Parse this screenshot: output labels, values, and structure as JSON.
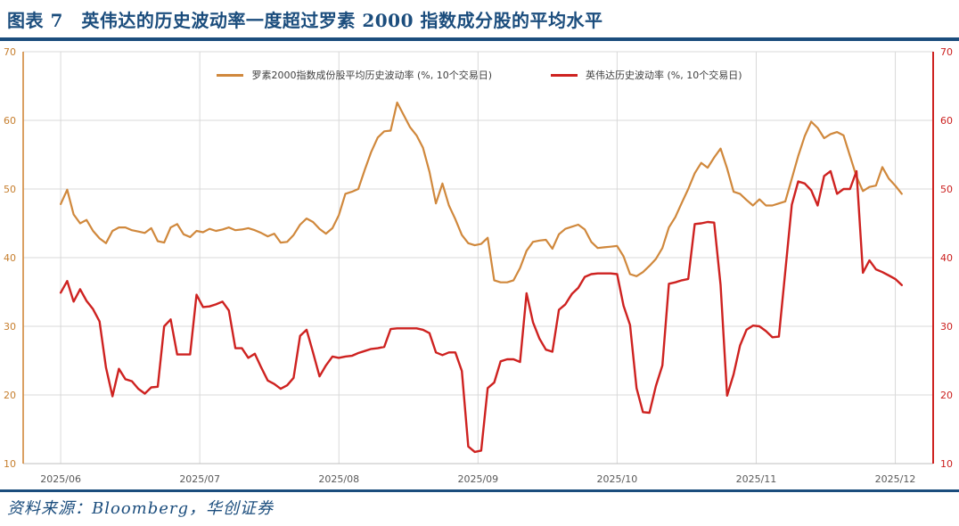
{
  "header": {
    "title": "图表 7　英伟达的历史波动率一度超过罗素 2000 指数成分股的平均水平"
  },
  "footer": {
    "source": "资料来源：Bloomberg，华创证券"
  },
  "colors": {
    "brand_blue": "#1b4d7d",
    "russell_orange": "#D0883C",
    "nvda_red": "#CE2220",
    "left_axis_label": "#C67E2D",
    "right_axis_label": "#CB1F1E",
    "gridline": "#D9D9D9",
    "bottom_axis": "#BFBFBF"
  },
  "chart_data": {
    "type": "line",
    "title": "",
    "xlabel": "",
    "ylabel": "",
    "ylim": [
      10,
      70
    ],
    "y_ticks": [
      70,
      60,
      50,
      40,
      30,
      20,
      10
    ],
    "grid": true,
    "legend_position": "top-center",
    "x_domain": [
      -5.8,
      134.85
    ],
    "months": [
      {
        "label": "2025/06",
        "i": 0
      },
      {
        "label": "2025/07",
        "i": 21.5
      },
      {
        "label": "2025/08",
        "i": 43
      },
      {
        "label": "2025/09",
        "i": 64.5
      },
      {
        "label": "2025/10",
        "i": 86
      },
      {
        "label": "2025/11",
        "i": 107.5
      },
      {
        "label": "2025/12",
        "i": 129
      }
    ],
    "series": [
      {
        "name": "罗素2000指数成份股平均历史波动率 (%, 10个交易日)",
        "color": "#D0883C",
        "width": 2.2,
        "values": [
          47.8,
          49.9,
          46.3,
          45.0,
          45.5,
          43.9,
          42.8,
          42.1,
          43.9,
          44.4,
          44.4,
          44.0,
          43.8,
          43.6,
          44.3,
          42.4,
          42.2,
          44.4,
          44.9,
          43.4,
          43.0,
          43.9,
          43.7,
          44.2,
          43.9,
          44.1,
          44.4,
          44.0,
          44.1,
          44.3,
          44.0,
          43.6,
          43.1,
          43.5,
          42.2,
          42.3,
          43.3,
          44.8,
          45.7,
          45.2,
          44.2,
          43.5,
          44.3,
          46.2,
          49.3,
          49.6,
          50.0,
          52.8,
          55.4,
          57.5,
          58.4,
          58.5,
          62.6,
          60.8,
          59.0,
          57.8,
          56.0,
          52.5,
          47.9,
          50.8,
          47.6,
          45.6,
          43.3,
          42.1,
          41.8,
          42.0,
          42.9,
          36.7,
          36.4,
          36.4,
          36.7,
          38.5,
          41.0,
          42.3,
          42.5,
          42.6,
          41.3,
          43.4,
          44.2,
          44.5,
          44.8,
          44.1,
          42.3,
          41.4,
          41.5,
          41.6,
          41.7,
          40.2,
          37.6,
          37.3,
          37.9,
          38.8,
          39.8,
          41.4,
          44.4,
          45.9,
          48.0,
          50.0,
          52.3,
          53.8,
          53.1,
          54.6,
          55.9,
          53.0,
          49.6,
          49.3,
          48.4,
          47.6,
          48.5,
          47.6,
          47.6,
          47.9,
          48.2,
          51.5,
          54.8,
          57.7,
          59.8,
          58.9,
          57.4,
          58.0,
          58.3,
          57.8,
          54.8,
          51.8,
          49.7,
          50.3,
          50.5,
          53.2,
          51.5,
          50.5,
          49.3
        ]
      },
      {
        "name": "英伟达历史波动率 (%, 10个交易日)",
        "color": "#CE2220",
        "width": 2.4,
        "values": [
          34.9,
          36.6,
          33.6,
          35.4,
          33.7,
          32.5,
          30.7,
          24.0,
          19.8,
          23.8,
          22.3,
          22.0,
          20.9,
          20.2,
          21.1,
          21.2,
          30.0,
          31.0,
          25.9,
          25.9,
          25.9,
          34.6,
          32.8,
          32.9,
          33.2,
          33.6,
          32.3,
          26.8,
          26.8,
          25.4,
          26.0,
          24.0,
          22.1,
          21.6,
          20.9,
          21.4,
          22.5,
          28.6,
          29.5,
          26.2,
          22.7,
          24.3,
          25.6,
          25.4,
          25.6,
          25.7,
          26.1,
          26.4,
          26.7,
          26.8,
          27.0,
          29.6,
          29.7,
          29.7,
          29.7,
          29.7,
          29.5,
          29.0,
          26.2,
          25.8,
          26.2,
          26.2,
          23.5,
          12.5,
          11.7,
          11.9,
          21.0,
          21.8,
          24.9,
          25.2,
          25.2,
          24.8,
          34.8,
          30.6,
          28.2,
          26.6,
          26.3,
          32.4,
          33.2,
          34.7,
          35.6,
          37.2,
          37.6,
          37.7,
          37.7,
          37.7,
          37.6,
          33.0,
          30.2,
          21.0,
          17.5,
          17.4,
          21.3,
          24.3,
          36.2,
          36.4,
          36.7,
          36.9,
          44.9,
          45.0,
          45.2,
          45.1,
          36.0,
          19.9,
          23.0,
          27.2,
          29.5,
          30.1,
          30.0,
          29.3,
          28.4,
          28.5,
          38.0,
          47.7,
          51.1,
          50.8,
          49.8,
          47.6,
          51.9,
          52.6,
          49.3,
          50.0,
          50.0,
          52.6,
          37.8,
          39.6,
          38.3,
          37.9,
          37.4,
          36.9,
          36.0
        ]
      }
    ],
    "axis_colors": {
      "left": "#C67E2D",
      "right": "#CB1F1E"
    }
  }
}
